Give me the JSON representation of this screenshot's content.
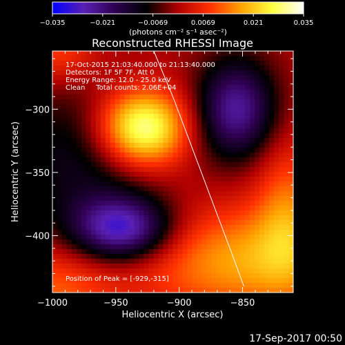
{
  "chart_data": {
    "type": "heatmap",
    "title": "Reconstructed RHESSI Image",
    "colorbar": {
      "range": [
        -0.035,
        0.035
      ],
      "tick_labels": [
        "−0.035",
        "−0.021",
        "−0.0069",
        "0.0069",
        "0.021",
        "0.035"
      ],
      "units": "(photons cm⁻² s⁻¹ asec⁻²)",
      "colormap": [
        "#0000ff",
        "#5a1fb4",
        "#2e0050",
        "#000000",
        "#b00000",
        "#ff3000",
        "#ffa000",
        "#ffff40",
        "#ffffff"
      ]
    },
    "xlabel": "Heliocentric X (arcsec)",
    "ylabel": "Heliocentric Y (arcsec)",
    "xlim": [
      -1000,
      -810
    ],
    "ylim": [
      -445,
      -254
    ],
    "x_ticks": [
      -1000,
      -950,
      -900,
      -850
    ],
    "x_tick_labels": [
      "−1000",
      "−950",
      "−900",
      "−850"
    ],
    "y_ticks": [
      -300,
      -350,
      -400
    ],
    "y_tick_labels": [
      "−300",
      "−350",
      "−400"
    ],
    "annotations": [
      "17-Oct-2015 21:03:40.000 to 21:13:40.000",
      "Detectors: 1F 5F 7F, Att 0",
      "Energy Range: 12.0 - 25.0 keV",
      "Clean     Total counts: 2.06E+04"
    ],
    "peak_label": "Position of Peak = [-929,-315]",
    "peak": [
      -929,
      -315
    ],
    "limb_curve": [
      [
        -920,
        -254
      ],
      [
        -905,
        -290
      ],
      [
        -890,
        -330
      ],
      [
        -875,
        -370
      ],
      [
        -860,
        -410
      ],
      [
        -849,
        -440
      ]
    ],
    "components": [
      {
        "label": "bright source",
        "x": -929,
        "y": -315,
        "sigma": [
          25,
          22
        ],
        "amplitude": 0.035
      },
      {
        "label": "lower-right emission",
        "x": -850,
        "y": -420,
        "sigma": [
          60,
          30
        ],
        "amplitude": 0.018
      },
      {
        "label": "right emission",
        "x": -815,
        "y": -380,
        "sigma": [
          18,
          40
        ],
        "amplitude": 0.012
      },
      {
        "label": "top-left emission",
        "x": -995,
        "y": -255,
        "sigma": [
          22,
          18
        ],
        "amplitude": 0.01
      },
      {
        "label": "bottom-left emission",
        "x": -1000,
        "y": -445,
        "sigma": [
          35,
          28
        ],
        "amplitude": 0.012
      },
      {
        "label": "negative lobe left",
        "x": -945,
        "y": -395,
        "sigma": [
          28,
          18
        ],
        "amplitude": -0.028
      },
      {
        "label": "negative lobe right",
        "x": -855,
        "y": -300,
        "sigma": [
          22,
          28
        ],
        "amplitude": -0.024
      },
      {
        "label": "negative arc",
        "x": -975,
        "y": -340,
        "sigma": [
          45,
          45
        ],
        "amplitude": -0.012
      }
    ]
  },
  "footer": {
    "timestamp": "17-Sep-2017 00:50"
  }
}
